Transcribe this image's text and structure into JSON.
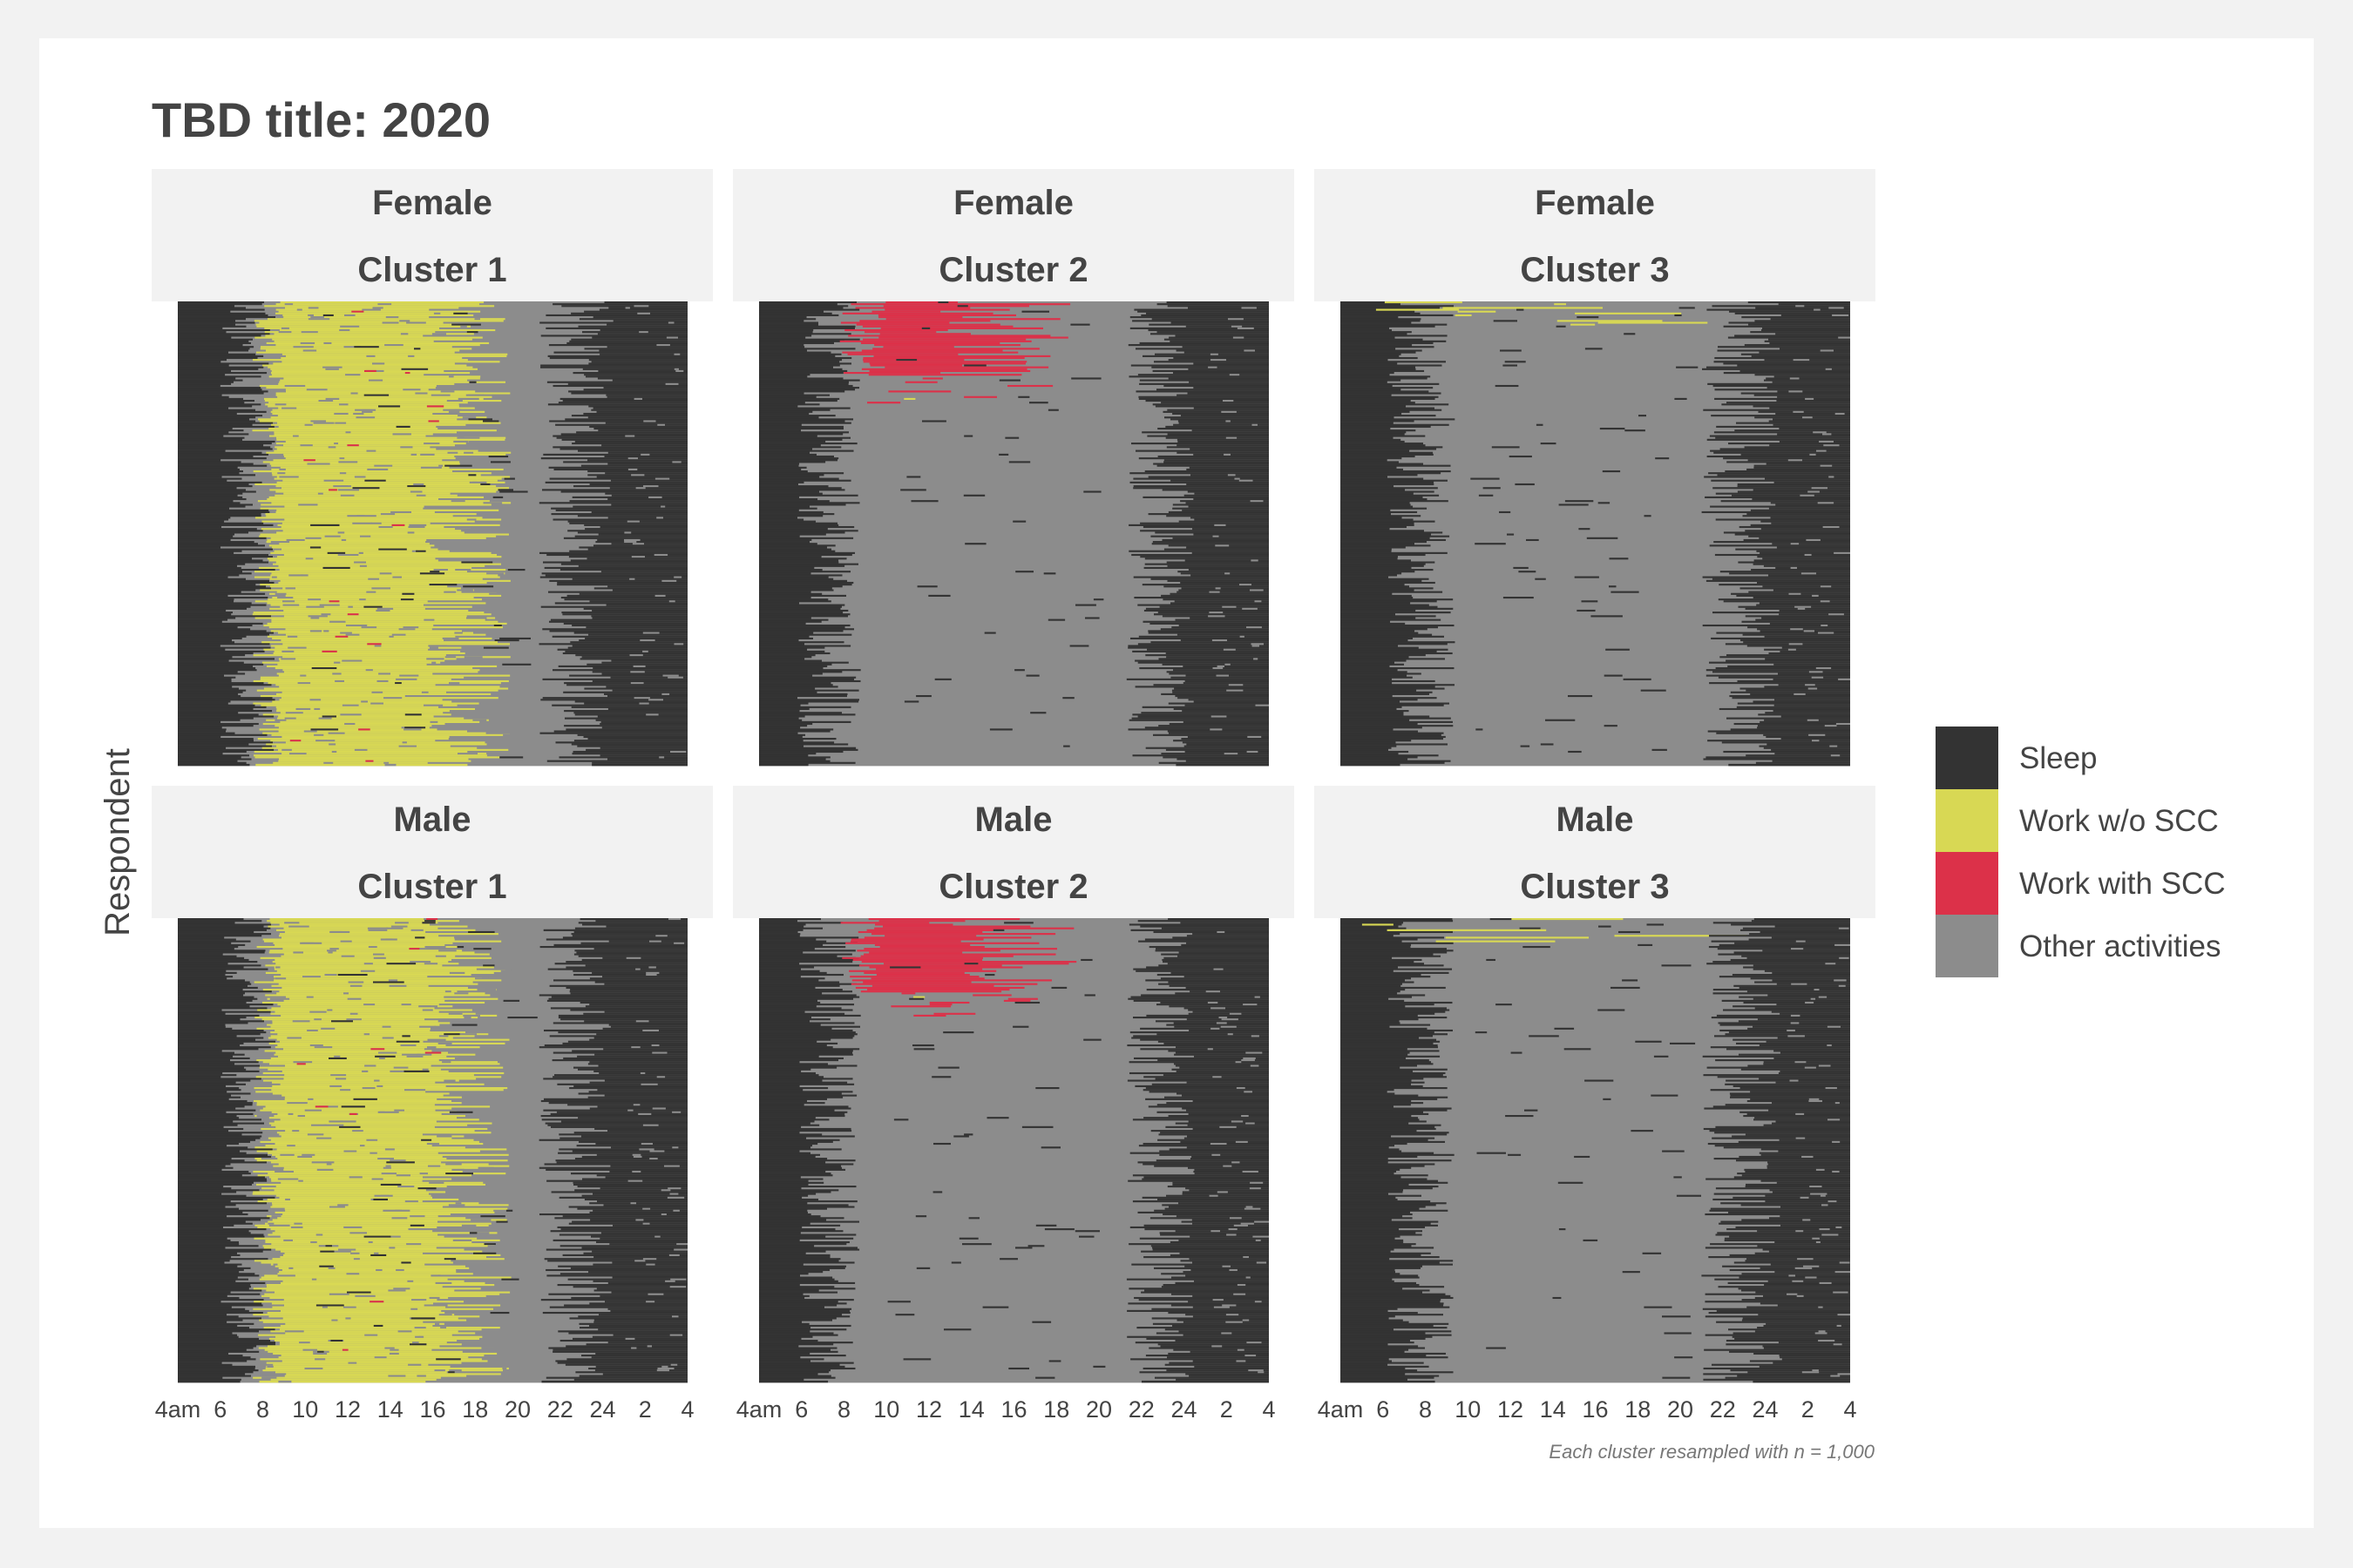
{
  "chart_data": {
    "type": "heatmap",
    "title": "TBD title: 2020",
    "ylabel": "Respondent",
    "caption": "Each cluster resampled with n = 1,000",
    "x_ticks": [
      "4am",
      "6",
      "8",
      "10",
      "12",
      "14",
      "16",
      "18",
      "20",
      "22",
      "24",
      "2",
      "4"
    ],
    "x_hours": [
      4,
      6,
      8,
      10,
      12,
      14,
      16,
      18,
      20,
      22,
      24,
      26,
      28
    ],
    "x_range": [
      4,
      28
    ],
    "n_per_cluster": 1000,
    "legend": [
      {
        "label": "Sleep",
        "color": "#333333"
      },
      {
        "label": "Work w/o SCC",
        "color": "#d8d854"
      },
      {
        "label": "Work with SCC",
        "color": "#dc3149"
      },
      {
        "label": "Other activities",
        "color": "#8c8c8c"
      }
    ],
    "panels": [
      {
        "sex": "Female",
        "cluster": "Cluster 1",
        "profile": "work_day"
      },
      {
        "sex": "Female",
        "cluster": "Cluster 2",
        "profile": "scc_work"
      },
      {
        "sex": "Female",
        "cluster": "Cluster 3",
        "profile": "non_work"
      },
      {
        "sex": "Male",
        "cluster": "Cluster 1",
        "profile": "work_day"
      },
      {
        "sex": "Male",
        "cluster": "Cluster 2",
        "profile": "scc_work"
      },
      {
        "sex": "Male",
        "cluster": "Cluster 3",
        "profile": "non_work"
      }
    ]
  }
}
